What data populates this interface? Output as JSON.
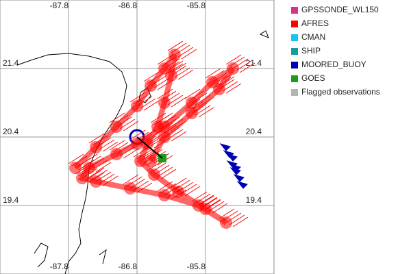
{
  "chart_data": {
    "type": "map",
    "xlim": [
      -88.8,
      -84.8
    ],
    "ylim": [
      18.4,
      22.4
    ],
    "xticks": [
      -87.8,
      -86.8,
      -85.8
    ],
    "yticks": [
      21.4,
      20.4,
      19.4
    ],
    "grid": true,
    "series": [
      {
        "name": "GPSSONDE_WL150",
        "color": "#d6338a"
      },
      {
        "name": "AFRES",
        "color": "#ff0000",
        "x": [
          -87.7,
          -87.4,
          -87.1,
          -86.8,
          -86.6,
          -86.4,
          -86.25,
          -86.3,
          -86.4,
          -86.5,
          -86.65,
          -86.75,
          -86.55,
          -86.2,
          -85.8,
          -85.5,
          -85.9,
          -86.4,
          -86.9,
          -87.4,
          -87.6,
          -87.5,
          -87.1,
          -86.8,
          -86.4,
          -86.0,
          -85.7,
          -85.4,
          -85.6,
          -86.0,
          -86.4,
          -86.6
        ],
        "y": [
          19.95,
          20.25,
          20.55,
          20.85,
          21.15,
          21.4,
          21.6,
          21.3,
          20.9,
          20.55,
          20.3,
          20.05,
          19.85,
          19.6,
          19.35,
          19.15,
          19.4,
          19.55,
          19.65,
          19.75,
          19.8,
          19.95,
          20.15,
          20.3,
          20.55,
          20.9,
          21.2,
          21.4,
          21.1,
          20.75,
          20.4,
          20.05
        ]
      },
      {
        "name": "CMAN",
        "color": "#19c3f0"
      },
      {
        "name": "SHIP",
        "color": "#129c9c"
      },
      {
        "name": "MOORED_BUOY",
        "color": "#0000b4",
        "x": [
          -85.5,
          -85.45,
          -85.4,
          -85.35,
          -85.3,
          -85.4,
          -85.35,
          -85.25
        ],
        "y": [
          20.2,
          20.1,
          19.95,
          19.85,
          19.75,
          20.05,
          19.9,
          19.65
        ]
      },
      {
        "name": "GOES",
        "color": "#1c9c1c",
        "x": [
          -86.43
        ],
        "y": [
          20.09
        ]
      },
      {
        "name": "Flagged observations",
        "color": "#b4b4b4"
      }
    ]
  }
}
